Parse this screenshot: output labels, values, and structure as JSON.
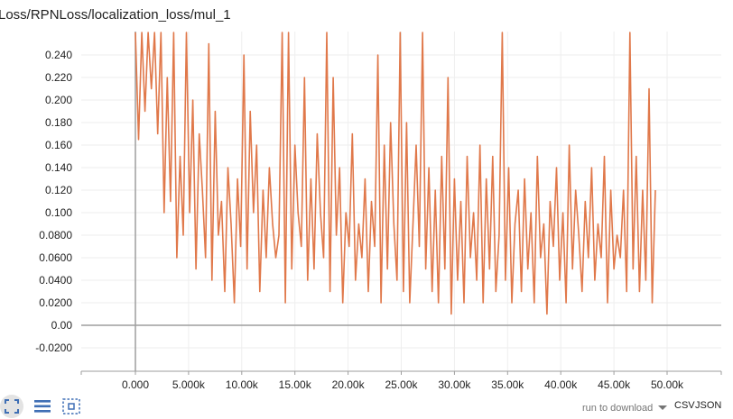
{
  "title": "Loss/RPNLoss/localization_loss/mul_1",
  "colors": {
    "series": "#e0784a",
    "axis": "#9e9e9e",
    "grid": "#eeeeee",
    "zero_line": "#9e9e9e"
  },
  "toolbar": {
    "fit_icon": "fit-domain-icon",
    "log_icon": "toggle-log-scale-icon",
    "select_icon": "data-selection-icon",
    "download_label": "run to download",
    "csv_label": "CSV",
    "json_label": "JSON"
  },
  "chart_data": {
    "type": "line",
    "title": "Loss/RPNLoss/localization_loss/mul_1",
    "xlabel": "",
    "ylabel": "",
    "xlim": [
      -5000,
      55000
    ],
    "ylim": [
      -0.04,
      0.26
    ],
    "grid": true,
    "x_ticks": [
      "0.000",
      "5.000k",
      "10.00k",
      "15.00k",
      "20.00k",
      "25.00k",
      "30.00k",
      "35.00k",
      "40.00k",
      "45.00k",
      "50.00k"
    ],
    "x_tick_values": [
      0,
      5000,
      10000,
      15000,
      20000,
      25000,
      30000,
      35000,
      40000,
      45000,
      50000
    ],
    "y_ticks": [
      "-0.0200",
      "0.00",
      "0.0200",
      "0.0400",
      "0.0600",
      "0.0800",
      "0.100",
      "0.120",
      "0.140",
      "0.160",
      "0.180",
      "0.200",
      "0.220",
      "0.240"
    ],
    "y_tick_values": [
      -0.02,
      0.0,
      0.02,
      0.04,
      0.06,
      0.08,
      0.1,
      0.12,
      0.14,
      0.16,
      0.18,
      0.2,
      0.22,
      0.24
    ],
    "series": [
      {
        "x": [
          0,
          300,
          600,
          900,
          1200,
          1500,
          1800,
          2100,
          2400,
          2700,
          3000,
          3300,
          3600,
          3900,
          4200,
          4500,
          4800,
          5100,
          5400,
          5700,
          6000,
          6300,
          6600,
          6900,
          7200,
          7500,
          7800,
          8100,
          8400,
          8700,
          9000,
          9300,
          9600,
          9900,
          10200,
          10500,
          10800,
          11100,
          11400,
          11700,
          12000,
          12300,
          12600,
          12900,
          13200,
          13500,
          13800,
          14100,
          14400,
          14700,
          15000,
          15300,
          15600,
          15900,
          16200,
          16500,
          16800,
          17100,
          17400,
          17700,
          18000,
          18300,
          18600,
          18900,
          19200,
          19500,
          19800,
          20100,
          20400,
          20700,
          21000,
          21300,
          21600,
          21900,
          22200,
          22500,
          22800,
          23100,
          23400,
          23700,
          24000,
          24300,
          24600,
          24900,
          25200,
          25500,
          25800,
          26100,
          26400,
          26700,
          27000,
          27300,
          27600,
          27900,
          28200,
          28500,
          28800,
          29100,
          29400,
          29700,
          30000,
          30300,
          30600,
          30900,
          31200,
          31500,
          31800,
          32100,
          32400,
          32700,
          33000,
          33300,
          33600,
          33900,
          34200,
          34500,
          34800,
          35100,
          35400,
          35700,
          36000,
          36300,
          36600,
          36900,
          37200,
          37500,
          37800,
          38100,
          38400,
          38700,
          39000,
          39300,
          39600,
          39900,
          40200,
          40500,
          40800,
          41100,
          41400,
          41700,
          42000,
          42300,
          42600,
          42900,
          43200,
          43500,
          43800,
          44100,
          44400,
          44700,
          45000,
          45300,
          45600,
          45900,
          46200,
          46500,
          46800,
          47100,
          47400,
          47700,
          48000,
          48300,
          48600,
          48900
        ],
        "values": [
          0.26,
          0.165,
          0.26,
          0.19,
          0.26,
          0.21,
          0.26,
          0.17,
          0.26,
          0.1,
          0.22,
          0.11,
          0.26,
          0.06,
          0.15,
          0.08,
          0.26,
          0.1,
          0.2,
          0.05,
          0.17,
          0.12,
          0.06,
          0.25,
          0.04,
          0.19,
          0.08,
          0.11,
          0.03,
          0.14,
          0.09,
          0.02,
          0.13,
          0.07,
          0.24,
          0.05,
          0.19,
          0.1,
          0.16,
          0.03,
          0.12,
          0.06,
          0.14,
          0.09,
          0.06,
          0.08,
          0.26,
          0.02,
          0.26,
          0.05,
          0.16,
          0.1,
          0.07,
          0.22,
          0.04,
          0.13,
          0.05,
          0.17,
          0.1,
          0.06,
          0.26,
          0.03,
          0.22,
          0.08,
          0.14,
          0.02,
          0.1,
          0.07,
          0.17,
          0.04,
          0.09,
          0.06,
          0.13,
          0.03,
          0.11,
          0.07,
          0.24,
          0.02,
          0.16,
          0.05,
          0.18,
          0.09,
          0.04,
          0.26,
          0.03,
          0.18,
          0.02,
          0.09,
          0.16,
          0.07,
          0.26,
          0.05,
          0.14,
          0.03,
          0.12,
          0.02,
          0.15,
          0.05,
          0.22,
          0.01,
          0.13,
          0.04,
          0.11,
          0.02,
          0.15,
          0.06,
          0.1,
          0.04,
          0.16,
          0.02,
          0.13,
          0.05,
          0.15,
          0.03,
          0.08,
          0.26,
          0.04,
          0.14,
          0.02,
          0.09,
          0.12,
          0.03,
          0.13,
          0.05,
          0.1,
          0.02,
          0.15,
          0.06,
          0.09,
          0.01,
          0.11,
          0.07,
          0.14,
          0.04,
          0.1,
          0.02,
          0.16,
          0.05,
          0.12,
          0.08,
          0.03,
          0.11,
          0.06,
          0.14,
          0.04,
          0.09,
          0.06,
          0.15,
          0.02,
          0.12,
          0.05,
          0.08,
          0.06,
          0.12,
          0.03,
          0.26,
          0.05,
          0.15,
          0.03,
          0.12,
          0.04,
          0.21,
          0.02,
          0.12
        ],
        "name": ""
      }
    ]
  }
}
